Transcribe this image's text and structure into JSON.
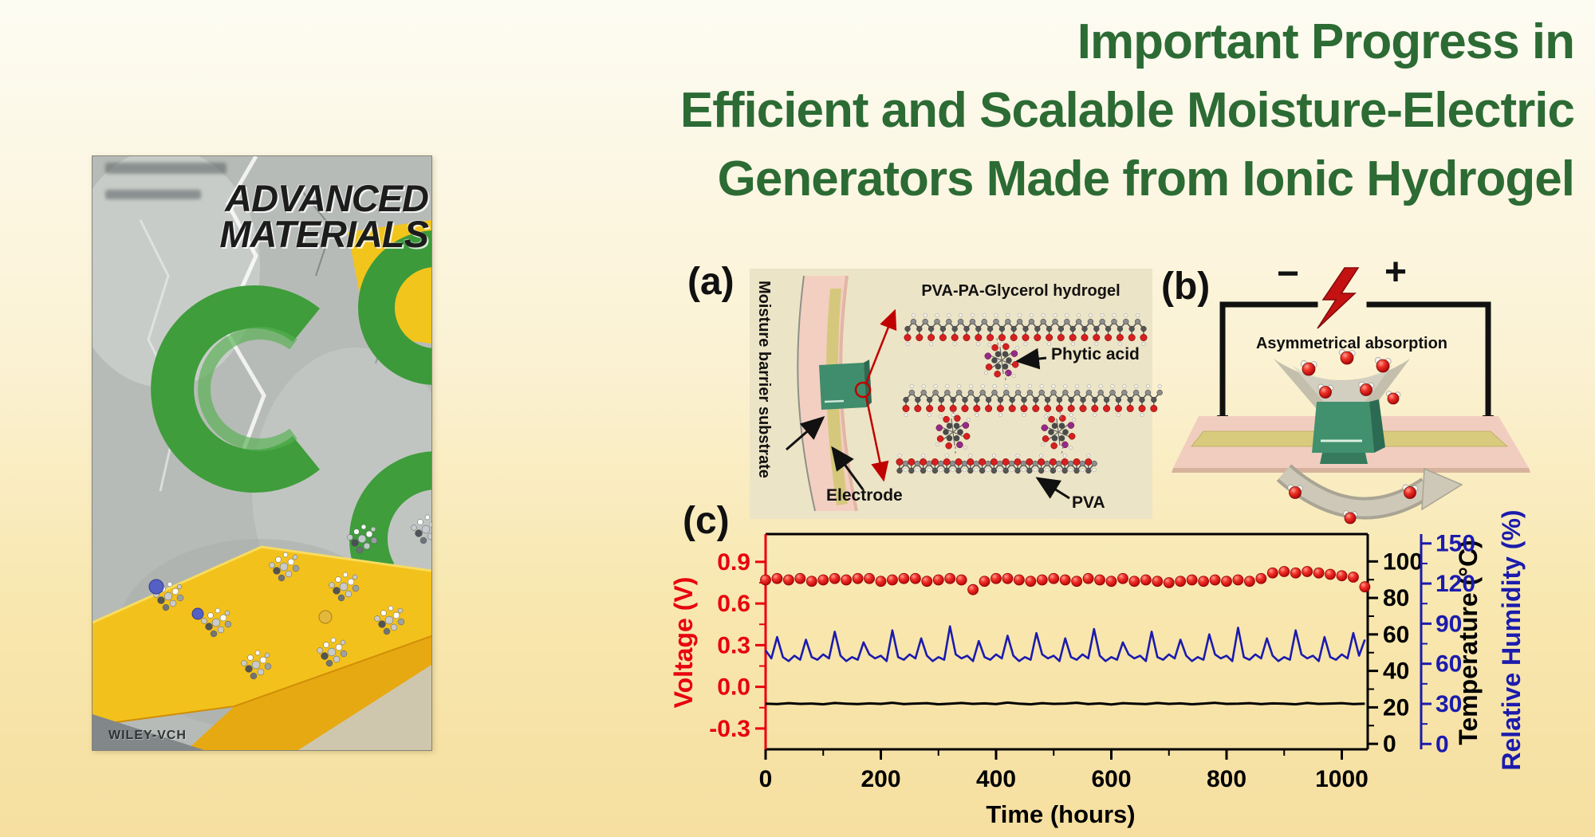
{
  "title": {
    "lines": [
      "Important Progress in",
      "Efficient and Scalable Moisture-Electric",
      "Generators Made from Ionic Hydrogel"
    ],
    "color": "#2c6b34"
  },
  "cover": {
    "journal_line1": "ADVANCED",
    "journal_line2": "MATERIALS",
    "publisher": "WILEY-VCH"
  },
  "panel_a": {
    "label": "(a)",
    "substrate_label": "Moisture barrier substrate",
    "electrode_label": "Electrode",
    "hydrogel_label": "PVA-PA-Glycerol hydrogel",
    "phytic_label": "Phytic acid",
    "pva_label": "PVA"
  },
  "panel_b": {
    "label": "(b)",
    "minus": "−",
    "plus": "+",
    "absorption_label": "Asymmetrical absorption"
  },
  "panel_c": {
    "label": "(c)"
  },
  "colors": {
    "title_green": "#2c6b34",
    "voltage_red": "#e8000d",
    "humidity_blue": "#1b1bad",
    "temperature_black": "#000000",
    "hydrogel_green": "#41906e",
    "substrate_pink": "#f3cfc1",
    "electrode_khaki": "#d5c87c"
  },
  "chart_data": {
    "type": "line",
    "title": "",
    "xlabel": "Time (hours)",
    "x_axis": {
      "label": "Time (hours)",
      "ticks": [
        0,
        200,
        400,
        600,
        800,
        1000
      ],
      "tick_labels": [
        "0",
        "200",
        "400",
        "600",
        "800",
        "1000"
      ],
      "range": [
        0,
        1045
      ]
    },
    "grid": false,
    "legend": "none",
    "y_axes": [
      {
        "id": "voltage",
        "label": "Voltage (V)",
        "color": "#e8000d",
        "side": "left",
        "ticks": [
          0.9,
          0.6,
          0.3,
          0.0,
          -0.3
        ],
        "tick_labels": [
          "0.9",
          "0.6",
          "0.3",
          "0.0",
          "-0.3"
        ],
        "range": [
          -0.45,
          1.1
        ]
      },
      {
        "id": "temperature",
        "label": "Temperature (°C)",
        "color": "#000000",
        "side": "right",
        "ticks": [
          100,
          80,
          60,
          40,
          20,
          0
        ],
        "tick_labels": [
          "100",
          "80",
          "60",
          "40",
          "20",
          "0"
        ],
        "range": [
          -3,
          115
        ]
      },
      {
        "id": "humidity",
        "label": "Relative Humidity (%)",
        "color": "#1b1bad",
        "side": "right_outer",
        "ticks": [
          150,
          120,
          90,
          60,
          30,
          0
        ],
        "tick_labels": [
          "150",
          "120",
          "90",
          "60",
          "30",
          "0"
        ],
        "range": [
          -4,
          157
        ]
      }
    ],
    "series": [
      {
        "id": "voltage",
        "axis": "voltage",
        "style": "spheres",
        "color": "#e8000d",
        "x_start": 0,
        "x_step": 20,
        "values": [
          0.77,
          0.78,
          0.77,
          0.78,
          0.76,
          0.77,
          0.78,
          0.77,
          0.78,
          0.78,
          0.76,
          0.77,
          0.78,
          0.78,
          0.76,
          0.77,
          0.78,
          0.77,
          0.7,
          0.76,
          0.78,
          0.78,
          0.77,
          0.76,
          0.77,
          0.78,
          0.77,
          0.76,
          0.78,
          0.77,
          0.76,
          0.78,
          0.76,
          0.77,
          0.76,
          0.75,
          0.76,
          0.77,
          0.76,
          0.77,
          0.76,
          0.77,
          0.76,
          0.78,
          0.82,
          0.83,
          0.82,
          0.83,
          0.82,
          0.81,
          0.8,
          0.79,
          0.72
        ]
      },
      {
        "id": "relative_humidity",
        "axis": "humidity",
        "style": "line",
        "color": "#1b1bad",
        "x_start": 0,
        "x_step": 10,
        "values": [
          70,
          64,
          80,
          65,
          62,
          66,
          63,
          78,
          65,
          63,
          67,
          64,
          84,
          66,
          62,
          65,
          63,
          76,
          67,
          64,
          66,
          62,
          85,
          65,
          63,
          67,
          64,
          79,
          66,
          62,
          65,
          63,
          88,
          67,
          64,
          66,
          62,
          77,
          65,
          63,
          67,
          64,
          81,
          66,
          62,
          65,
          63,
          83,
          67,
          64,
          66,
          62,
          79,
          65,
          63,
          67,
          64,
          86,
          66,
          62,
          65,
          63,
          76,
          67,
          64,
          66,
          62,
          84,
          65,
          63,
          67,
          64,
          78,
          66,
          62,
          65,
          63,
          82,
          67,
          64,
          66,
          62,
          87,
          65,
          63,
          67,
          64,
          79,
          66,
          62,
          65,
          63,
          85,
          67,
          64,
          66,
          62,
          80,
          65,
          63,
          67,
          64,
          83,
          66,
          78
        ]
      },
      {
        "id": "temperature",
        "axis": "temperature",
        "style": "line",
        "color": "#000000",
        "x_start": 0,
        "x_step": 20,
        "values": [
          22.0,
          21.8,
          22.3,
          21.9,
          22.1,
          21.7,
          22.4,
          22.0,
          21.8,
          22.2,
          21.9,
          22.5,
          21.8,
          22.1,
          22.3,
          21.7,
          22.0,
          22.4,
          21.9,
          22.2,
          21.8,
          22.6,
          22.0,
          21.7,
          22.3,
          21.9,
          22.1,
          22.5,
          21.8,
          22.2,
          21.6,
          22.3,
          22.0,
          21.8,
          22.4,
          21.9,
          22.2,
          21.7,
          22.1,
          22.5,
          21.9,
          22.0,
          22.3,
          21.8,
          22.2,
          22.0,
          21.7,
          22.4,
          21.9,
          22.1,
          22.3,
          21.8,
          22.0
        ]
      }
    ]
  }
}
